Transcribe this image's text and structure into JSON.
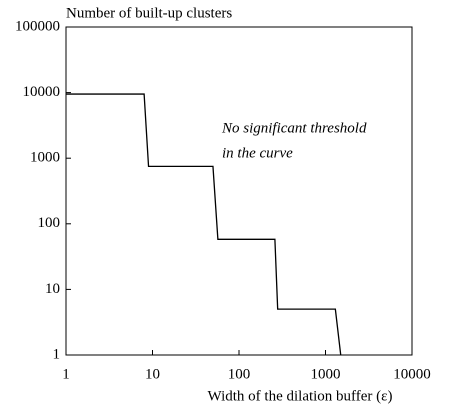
{
  "chart_data": {
    "type": "line",
    "title": "Number of built-up clusters",
    "x_label": "Width of the dilation buffer (ε)",
    "annotation": [
      "No significant threshold",
      "in the curve"
    ],
    "x": [
      1,
      8,
      9,
      50,
      57,
      260,
      280,
      1300,
      1500
    ],
    "series": [
      {
        "name": "clusters",
        "color": "#000000",
        "values": [
          9500,
          9500,
          750,
          750,
          58,
          58,
          5,
          5,
          1
        ]
      }
    ],
    "xlim": [
      1,
      10000
    ],
    "xticks": [
      1,
      10,
      100,
      1000,
      10000
    ],
    "ylim": [
      1,
      100000
    ],
    "yticks": [
      1,
      10,
      100,
      1000,
      10000,
      100000
    ],
    "xscale": "log",
    "yscale": "log",
    "grid": false
  }
}
